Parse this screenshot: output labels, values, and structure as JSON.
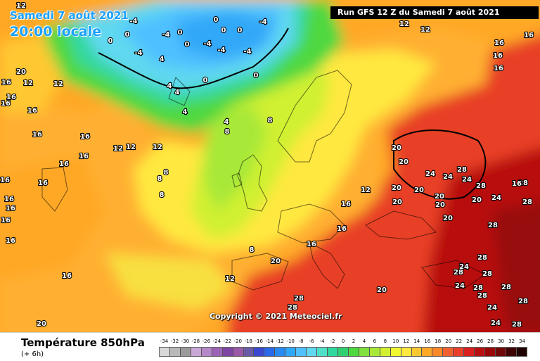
{
  "header": {
    "date_line": "Samedi 7 août 2021",
    "local_time": "20:00 locale",
    "run_info": "Run GFS 12 Z du Samedi 7 août 2021"
  },
  "map": {
    "copyright": "Copyright © 2021 Meteociel.fr",
    "isotherm_labels": [
      "12",
      "-4",
      "-4",
      "0",
      "0",
      "0",
      "-4",
      "0",
      "4",
      "-4",
      "12",
      "12",
      "0",
      "0",
      "-4",
      "-4",
      "-4",
      "0",
      "4",
      "4",
      "0",
      "0",
      "4",
      "16",
      "16",
      "12",
      "12",
      "12",
      "16",
      "8",
      "16",
      "12",
      "12",
      "8",
      "16",
      "16",
      "8",
      "4",
      "16",
      "16",
      "16",
      "16",
      "16",
      "16",
      "16",
      "8",
      "20",
      "16",
      "12",
      "8",
      "16",
      "16",
      "24",
      "28",
      "20",
      "24",
      "24",
      "28",
      "20",
      "20",
      "20",
      "24",
      "20",
      "20",
      "28",
      "20",
      "28",
      "16",
      "20",
      "28",
      "16",
      "28",
      "16",
      "8",
      "16",
      "12",
      "20",
      "24",
      "28",
      "28",
      "24",
      "28",
      "28",
      "20",
      "20",
      "16",
      "28",
      "28",
      "24",
      "28",
      "24",
      "28",
      "20",
      "16",
      "16",
      "28",
      "28"
    ]
  },
  "legend": {
    "title": "Température 850hPa",
    "subtitle": "(+ 6h)",
    "scale_values": [
      "-34",
      "-32",
      "-30",
      "-28",
      "-26",
      "-24",
      "-22",
      "-20",
      "-18",
      "-16",
      "-14",
      "-12",
      "-10",
      "-8",
      "-6",
      "-4",
      "-2",
      "0",
      "2",
      "4",
      "6",
      "8",
      "10",
      "12",
      "14",
      "16",
      "18",
      "20",
      "22",
      "24",
      "26",
      "28",
      "30",
      "32",
      "34"
    ],
    "scale_colors": [
      "#d8d8d8",
      "#b8b8b8",
      "#9a9a9a",
      "#c9a7d6",
      "#b488c8",
      "#9c64b6",
      "#7f45a4",
      "#9a5aa8",
      "#6a5aa8",
      "#3a4ad0",
      "#2a6ae8",
      "#2a8af0",
      "#30a8f8",
      "#50c0ff",
      "#60d8f0",
      "#50e0c8",
      "#30d8a0",
      "#30d070",
      "#50d840",
      "#80e040",
      "#a8e838",
      "#d0f030",
      "#f0f830",
      "#ffe840",
      "#ffc830",
      "#ffa828",
      "#f88828",
      "#f06030",
      "#e84028",
      "#d82020",
      "#b81010",
      "#980808",
      "#700808",
      "#400404",
      "#200000"
    ]
  }
}
